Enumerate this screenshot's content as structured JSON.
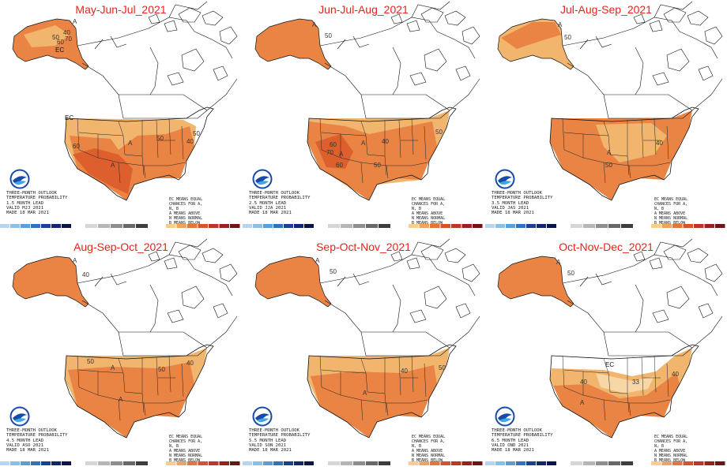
{
  "panels": [
    {
      "title": "May-Jun-Jul_2021",
      "info": [
        "THREE-MONTH OUTLOOK",
        "TEMPERATURE PROBABILITY",
        "1.5 MONTH LEAD",
        "VALID MJJ 2021",
        "MADE 18 MAR 2021"
      ],
      "ec_labels": [
        "EC",
        "EC"
      ],
      "region_labels": [
        "A",
        "A",
        "A"
      ],
      "contour_labels": [
        "40",
        "50",
        "60",
        "70",
        "60",
        "50",
        "40",
        "50"
      ]
    },
    {
      "title": "Jun-Jul-Aug_2021",
      "info": [
        "THREE-MONTH OUTLOOK",
        "TEMPERATURE PROBABILITY",
        "2.5 MONTH LEAD",
        "VALID JJA 2021",
        "MADE 18 MAR 2021"
      ],
      "ec_labels": [],
      "region_labels": [
        "A",
        "A",
        "A"
      ],
      "contour_labels": [
        "50",
        "60",
        "70",
        "60",
        "50",
        "40",
        "50"
      ]
    },
    {
      "title": "Jul-Aug-Sep_2021",
      "info": [
        "THREE-MONTH OUTLOOK",
        "TEMPERATURE PROBABILITY",
        "3.5 MONTH LEAD",
        "VALID JAS 2021",
        "MADE 18 MAR 2021"
      ],
      "ec_labels": [],
      "region_labels": [
        "A",
        "A"
      ],
      "contour_labels": [
        "50",
        "50",
        "40"
      ]
    },
    {
      "title": "Aug-Sep-Oct_2021",
      "info": [
        "THREE-MONTH OUTLOOK",
        "TEMPERATURE PROBABILITY",
        "4.5 MONTH LEAD",
        "VALID ASO 2021",
        "MADE 18 MAR 2021"
      ],
      "ec_labels": [],
      "region_labels": [
        "A",
        "A",
        "A"
      ],
      "contour_labels": [
        "40",
        "50",
        "50",
        "40"
      ]
    },
    {
      "title": "Sep-Oct-Nov_2021",
      "info": [
        "THREE-MONTH OUTLOOK",
        "TEMPERATURE PROBABILITY",
        "5.5 MONTH LEAD",
        "VALID SON 2021",
        "MADE 18 MAR 2021"
      ],
      "ec_labels": [],
      "region_labels": [
        "A",
        "A"
      ],
      "contour_labels": [
        "50",
        "40",
        "50"
      ]
    },
    {
      "title": "Oct-Nov-Dec_2021",
      "info": [
        "THREE-MONTH OUTLOOK",
        "TEMPERATURE PROBABILITY",
        "6.5 MONTH LEAD",
        "VALID OND 2021",
        "MADE 18 MAR 2021"
      ],
      "ec_labels": [
        "EC"
      ],
      "region_labels": [
        "A",
        "A"
      ],
      "contour_labels": [
        "50",
        "40",
        "33",
        "40"
      ]
    }
  ],
  "key_text": [
    "EC MEANS EQUAL",
    "CHANCES FOR A,",
    "N, B",
    "A MEANS ABOVE",
    "N MEANS NORMAL",
    "B MEANS BELOW"
  ],
  "legend": {
    "below_colors": [
      "#b9d4ee",
      "#8cbfe6",
      "#5b9fd8",
      "#2f72bd",
      "#1b3f93",
      "#14256e",
      "#0b1446"
    ],
    "normal_colors": [
      "#d6d6d6",
      "#b6b6b6",
      "#8e8e8e",
      "#686868",
      "#3d3d3d"
    ],
    "above_colors": [
      "#f6cf8f",
      "#f0a35a",
      "#e67638",
      "#d8522a",
      "#c03426",
      "#9b1f1f",
      "#6f1414"
    ]
  },
  "colors": {
    "title": "#e8231c",
    "shade_33": "#f7d7a6",
    "shade_40": "#f1b56e",
    "shade_50": "#e98444",
    "shade_60": "#de5f2e",
    "shade_70": "#c83a24"
  }
}
